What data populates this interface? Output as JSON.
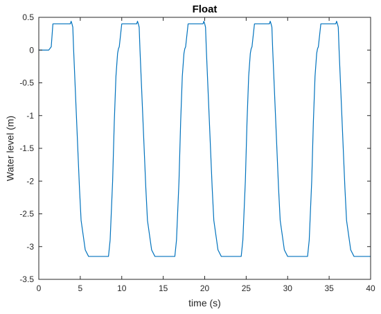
{
  "colors": {
    "series": "#0072BD",
    "axis": "#262626",
    "background": "#ffffff"
  },
  "chart_data": {
    "type": "line",
    "title": "Float",
    "xlabel": "time (s)",
    "ylabel": "Water level (m)",
    "xlim": [
      0,
      40
    ],
    "ylim": [
      -3.5,
      0.5
    ],
    "xticks": [
      0,
      5,
      10,
      15,
      20,
      25,
      30,
      35,
      40
    ],
    "yticks": [
      0.5,
      0,
      -0.5,
      -1,
      -1.5,
      -2,
      -2.5,
      -3,
      -3.5
    ],
    "xtick_labels": [
      "0",
      "5",
      "10",
      "15",
      "20",
      "25",
      "30",
      "35",
      "40"
    ],
    "ytick_labels": [
      "0.5",
      "0",
      "-0.5",
      "-1",
      "-1.5",
      "-2",
      "-2.5",
      "-3",
      "-3.5"
    ],
    "grid": false,
    "series": [
      {
        "x": [
          0,
          1.2,
          1.5,
          1.7,
          3.8,
          3.9,
          4.0,
          4.1,
          4.2,
          4.5,
          4.7,
          4.9,
          5.1,
          5.6,
          6.0,
          8.4,
          8.6,
          8.9,
          9.1,
          9.3,
          9.5,
          9.6,
          9.7,
          10.0,
          11.8,
          11.9,
          12.0,
          12.1,
          12.2,
          12.5,
          12.7,
          12.9,
          13.1,
          13.6,
          14.0,
          16.4,
          16.6,
          16.9,
          17.1,
          17.3,
          17.5,
          17.6,
          17.7,
          18.0,
          19.8,
          19.9,
          20.0,
          20.1,
          20.2,
          20.5,
          20.7,
          20.9,
          21.1,
          21.6,
          22.0,
          24.4,
          24.6,
          24.9,
          25.1,
          25.3,
          25.5,
          25.6,
          25.7,
          26.0,
          27.8,
          27.9,
          28.0,
          28.1,
          28.2,
          28.5,
          28.7,
          28.9,
          29.1,
          29.6,
          30.0,
          32.4,
          32.6,
          32.9,
          33.1,
          33.3,
          33.5,
          33.6,
          33.7,
          34.0,
          35.8,
          35.9,
          36.0,
          36.1,
          36.2,
          36.5,
          36.7,
          36.9,
          37.1,
          37.6,
          38.0,
          40.0
        ],
        "y": [
          0,
          0,
          0.05,
          0.4,
          0.4,
          0.44,
          0.4,
          0.35,
          0.0,
          -0.9,
          -1.5,
          -2.1,
          -2.6,
          -3.05,
          -3.15,
          -3.15,
          -2.9,
          -2.0,
          -1.1,
          -0.4,
          -0.05,
          0.02,
          0.05,
          0.4,
          0.4,
          0.44,
          0.4,
          0.35,
          0.0,
          -0.9,
          -1.5,
          -2.1,
          -2.6,
          -3.05,
          -3.15,
          -3.15,
          -2.9,
          -2.0,
          -1.1,
          -0.4,
          -0.05,
          0.02,
          0.05,
          0.4,
          0.4,
          0.44,
          0.4,
          0.35,
          0.0,
          -0.9,
          -1.5,
          -2.1,
          -2.6,
          -3.05,
          -3.15,
          -3.15,
          -2.9,
          -2.0,
          -1.1,
          -0.4,
          -0.05,
          0.02,
          0.05,
          0.4,
          0.4,
          0.44,
          0.4,
          0.35,
          0.0,
          -0.9,
          -1.5,
          -2.1,
          -2.6,
          -3.05,
          -3.15,
          -3.15,
          -2.9,
          -2.0,
          -1.1,
          -0.4,
          -0.05,
          0.02,
          0.05,
          0.4,
          0.4,
          0.44,
          0.4,
          0.35,
          0.0,
          -0.9,
          -1.5,
          -2.1,
          -2.6,
          -3.05,
          -3.15,
          -3.15
        ]
      }
    ]
  }
}
